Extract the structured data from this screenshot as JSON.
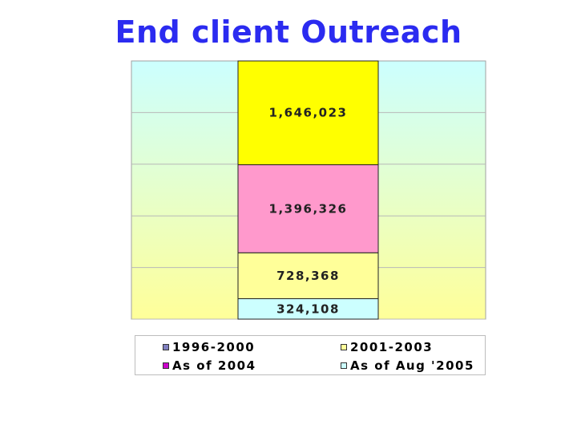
{
  "title": "End client Outreach",
  "chart_data": {
    "type": "bar",
    "stacked": true,
    "title": "End client Outreach",
    "categories": [
      ""
    ],
    "series": [
      {
        "name": "1996-2000",
        "values": [
          0
        ],
        "color": "#8080ff"
      },
      {
        "name": "As of Aug '2005",
        "values": [
          324108
        ],
        "color": "#ccffff"
      },
      {
        "name": "2001-2003",
        "values": [
          728368
        ],
        "color": "#ffff99"
      },
      {
        "name": "As of 2004",
        "values": [
          1396326
        ],
        "color": "#ff99cc"
      },
      {
        "name": "1996-2000",
        "values": [
          1646023
        ],
        "color": "#ffff00"
      }
    ],
    "data_labels": [
      "324,108",
      "728,368",
      "1,396,326",
      "1,646,023"
    ],
    "ylim": [
      0,
      4094825
    ],
    "grid": true,
    "legend_position": "bottom"
  },
  "legend": {
    "items": [
      {
        "label": "1996-2000",
        "color": "#8080c0"
      },
      {
        "label": "2001-2003",
        "color": "#ffff99"
      },
      {
        "label": "As of 2004",
        "color": "#cc00cc"
      },
      {
        "label": "As of Aug '2005",
        "color": "#ccffff"
      }
    ]
  }
}
